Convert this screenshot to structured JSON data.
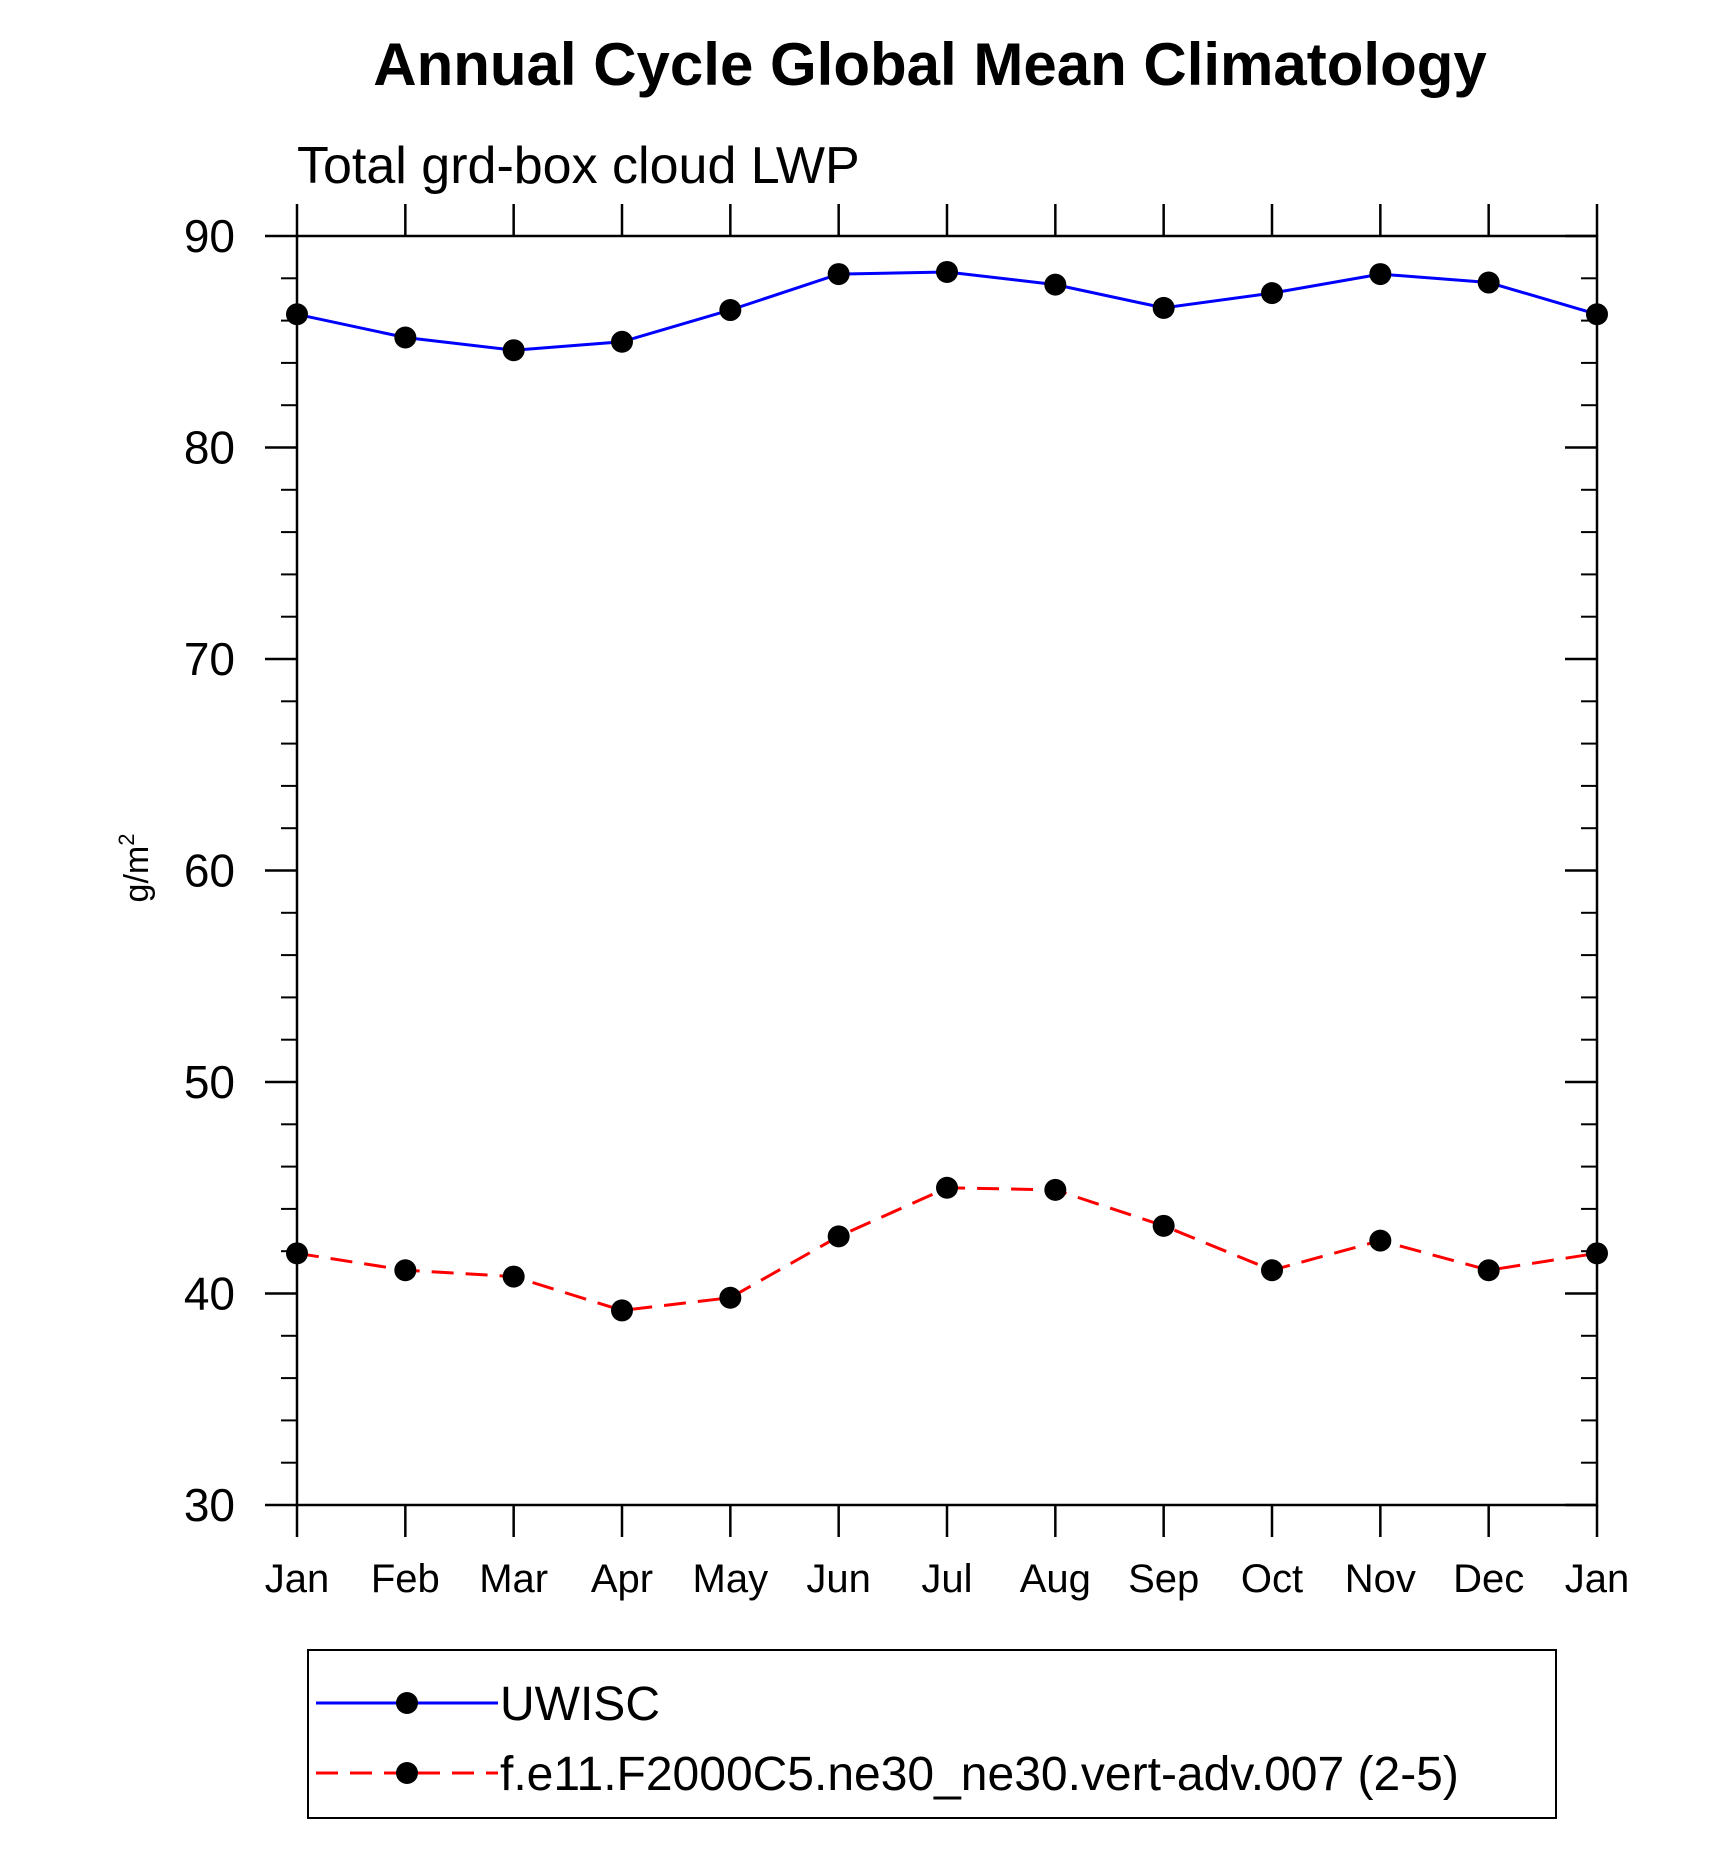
{
  "chart_data": {
    "type": "line",
    "title": "Annual Cycle Global Mean Climatology",
    "subtitle": "Total grd-box cloud LWP",
    "ylabel_base": "g/m",
    "ylabel_sup": "2",
    "xlabel": "",
    "ylim": [
      30,
      90
    ],
    "yticks": [
      30,
      40,
      50,
      60,
      70,
      80,
      90
    ],
    "y_minor_step": 2,
    "grid": false,
    "legend_position": "bottom",
    "categories": [
      "Jan",
      "Feb",
      "Mar",
      "Apr",
      "May",
      "Jun",
      "Jul",
      "Aug",
      "Sep",
      "Oct",
      "Nov",
      "Dec",
      "Jan"
    ],
    "series": [
      {
        "name": "UWISC",
        "color": "#0000ff",
        "dash": "solid",
        "marker": "filled-circle",
        "values": [
          86.3,
          85.2,
          84.6,
          85.0,
          86.5,
          88.2,
          88.3,
          87.7,
          86.6,
          87.3,
          88.2,
          87.8,
          86.3
        ]
      },
      {
        "name": "f.e11.F2000C5.ne30_ne30.vert-adv.007 (2-5)",
        "color": "#ff0000",
        "dash": "dashed",
        "marker": "filled-circle",
        "values": [
          41.9,
          41.1,
          40.8,
          39.2,
          39.8,
          42.7,
          45.0,
          44.9,
          43.2,
          41.1,
          42.5,
          41.1,
          41.9
        ]
      }
    ]
  }
}
